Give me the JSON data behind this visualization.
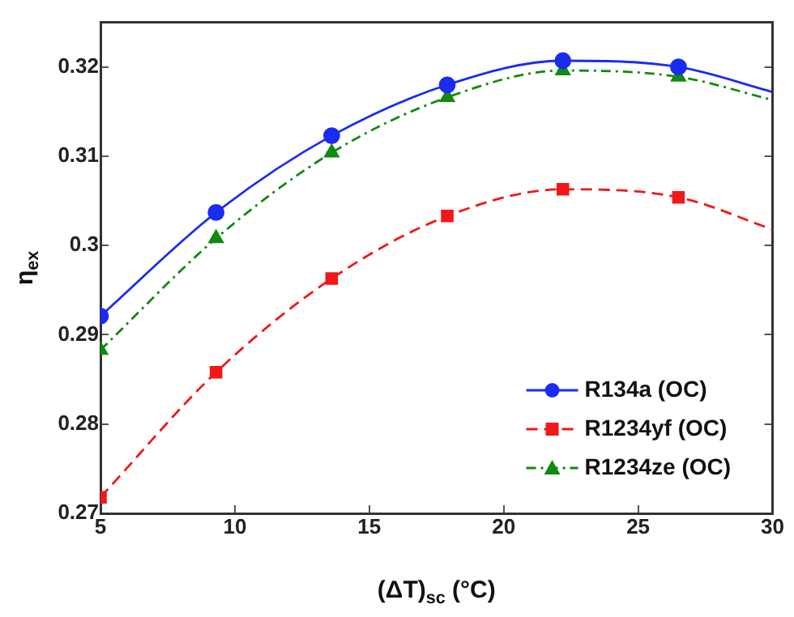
{
  "chart_data": {
    "type": "line",
    "xlabel": "(ΔT)$_{sc}$ (°C)",
    "ylabel": "η$_{ex}$",
    "xlim": [
      5,
      30
    ],
    "xticks": [
      5,
      10,
      15,
      20,
      25,
      30
    ],
    "ylim": [
      0.27,
      0.325
    ],
    "yticks": [
      0.27,
      0.28,
      0.29,
      0.3,
      0.31,
      0.32
    ],
    "grid": false,
    "legend": "bottom right",
    "series": [
      {
        "type": "line",
        "color": "#1a2cf0",
        "line_style": "solid",
        "marker": "none",
        "x": [
          5,
          9.3,
          13.6,
          17.9,
          22.2,
          26.5,
          30
        ],
        "values": [
          0.2921,
          0.3037,
          0.3123,
          0.318,
          0.3207,
          0.32,
          0.3172
        ]
      },
      {
        "type": "line",
        "color": "#f01818",
        "line_style": "dashed",
        "marker": "none",
        "x": [
          5,
          9.3,
          13.6,
          17.9,
          22.2,
          26.5,
          30
        ],
        "values": [
          0.2718,
          0.2858,
          0.2963,
          0.3033,
          0.3063,
          0.3054,
          0.3018
        ]
      },
      {
        "type": "line",
        "color": "#108a10",
        "line_style": "dotted",
        "marker": "none",
        "x": [
          5,
          9.3,
          13.6,
          17.9,
          22.2,
          26.5,
          30
        ],
        "values": [
          0.2883,
          0.3008,
          0.3104,
          0.3166,
          0.3196,
          0.3189,
          0.3163
        ]
      },
      {
        "type": "scatter",
        "name": "R134a (OC)",
        "color": "#1a2cf0",
        "marker": "circle",
        "x": [
          5,
          9.3,
          13.6,
          17.9,
          22.2,
          26.5
        ],
        "values": [
          0.2921,
          0.3037,
          0.3123,
          0.318,
          0.3207,
          0.32
        ]
      },
      {
        "type": "scatter",
        "name": "R1234yf (OC)",
        "color": "#f01818",
        "marker": "square",
        "x": [
          5,
          9.3,
          13.6,
          17.9,
          22.2,
          26.5
        ],
        "values": [
          0.2718,
          0.2858,
          0.2963,
          0.3033,
          0.3063,
          0.3054
        ]
      },
      {
        "type": "scatter",
        "name": "R1234ze (OC)",
        "color": "#108a10",
        "marker": "triangle",
        "x": [
          5,
          9.3,
          13.6,
          17.9,
          22.2,
          26.5
        ],
        "values": [
          0.2883,
          0.3008,
          0.3104,
          0.3166,
          0.3196,
          0.3189
        ]
      }
    ]
  }
}
